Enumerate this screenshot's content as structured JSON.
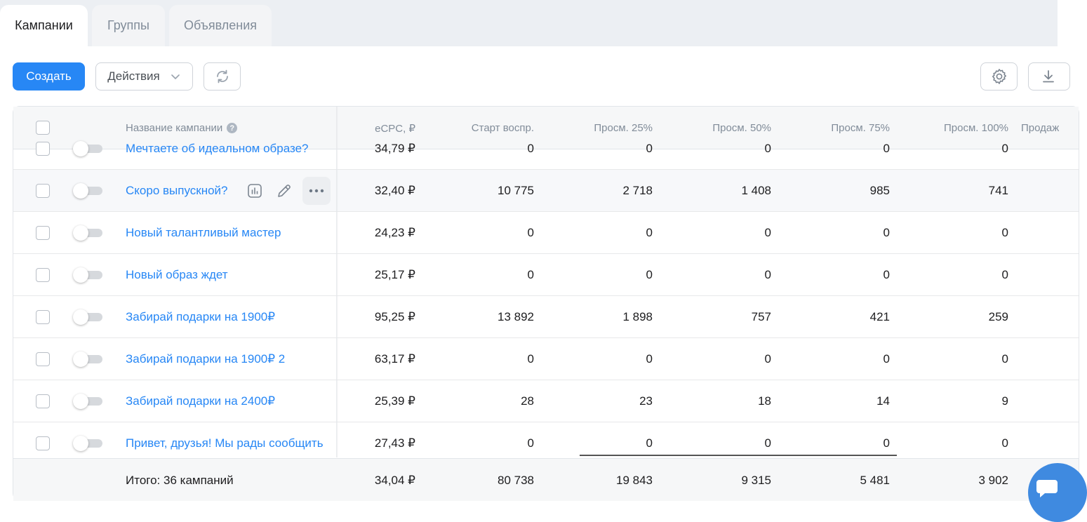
{
  "tabs": [
    {
      "label": "Кампании",
      "active": true
    },
    {
      "label": "Группы",
      "active": false
    },
    {
      "label": "Объявления",
      "active": false
    }
  ],
  "toolbar": {
    "create_label": "Создать",
    "actions_label": "Действия"
  },
  "table": {
    "headers": {
      "name": "Название кампании",
      "ecpc": "eCPC, ₽",
      "start": "Старт воспр.",
      "p25": "Просм. 25%",
      "p50": "Просм. 50%",
      "p75": "Просм. 75%",
      "p100": "Просм. 100%",
      "sales": "Продаж"
    },
    "rows": [
      {
        "name": "Мечтаете об идеальном образе?",
        "ecpc": "34,79 ₽",
        "start": "0",
        "p25": "0",
        "p50": "0",
        "p75": "0",
        "p100": "0"
      },
      {
        "name": "Скоро выпускной?",
        "ecpc": "32,40 ₽",
        "start": "10 775",
        "p25": "2 718",
        "p50": "1 408",
        "p75": "985",
        "p100": "741"
      },
      {
        "name": "Новый талантливый мастер",
        "ecpc": "24,23 ₽",
        "start": "0",
        "p25": "0",
        "p50": "0",
        "p75": "0",
        "p100": "0"
      },
      {
        "name": "Новый образ ждет",
        "ecpc": "25,17 ₽",
        "start": "0",
        "p25": "0",
        "p50": "0",
        "p75": "0",
        "p100": "0"
      },
      {
        "name": "Забирай подарки на 1900₽",
        "ecpc": "95,25 ₽",
        "start": "13 892",
        "p25": "1 898",
        "p50": "757",
        "p75": "421",
        "p100": "259"
      },
      {
        "name": "Забирай подарки на 1900₽ 2",
        "ecpc": "63,17 ₽",
        "start": "0",
        "p25": "0",
        "p50": "0",
        "p75": "0",
        "p100": "0"
      },
      {
        "name": "Забирай подарки на 2400₽",
        "ecpc": "25,39 ₽",
        "start": "28",
        "p25": "23",
        "p50": "18",
        "p75": "14",
        "p100": "9"
      },
      {
        "name": "Привет, друзья! Мы рады сообщить",
        "ecpc": "27,43 ₽",
        "start": "0",
        "p25": "0",
        "p50": "0",
        "p75": "0",
        "p100": "0"
      }
    ],
    "footer": {
      "label": "Итого: 36 кампаний",
      "ecpc": "34,04 ₽",
      "start": "80 738",
      "p25": "19 843",
      "p50": "9 315",
      "p75": "5 481",
      "p100": "3 902"
    }
  },
  "icons": {
    "help": "?"
  },
  "colors": {
    "accent": "#2787f5",
    "tabbar_bg": "#eceff3",
    "chat": "#3f8ae0"
  }
}
